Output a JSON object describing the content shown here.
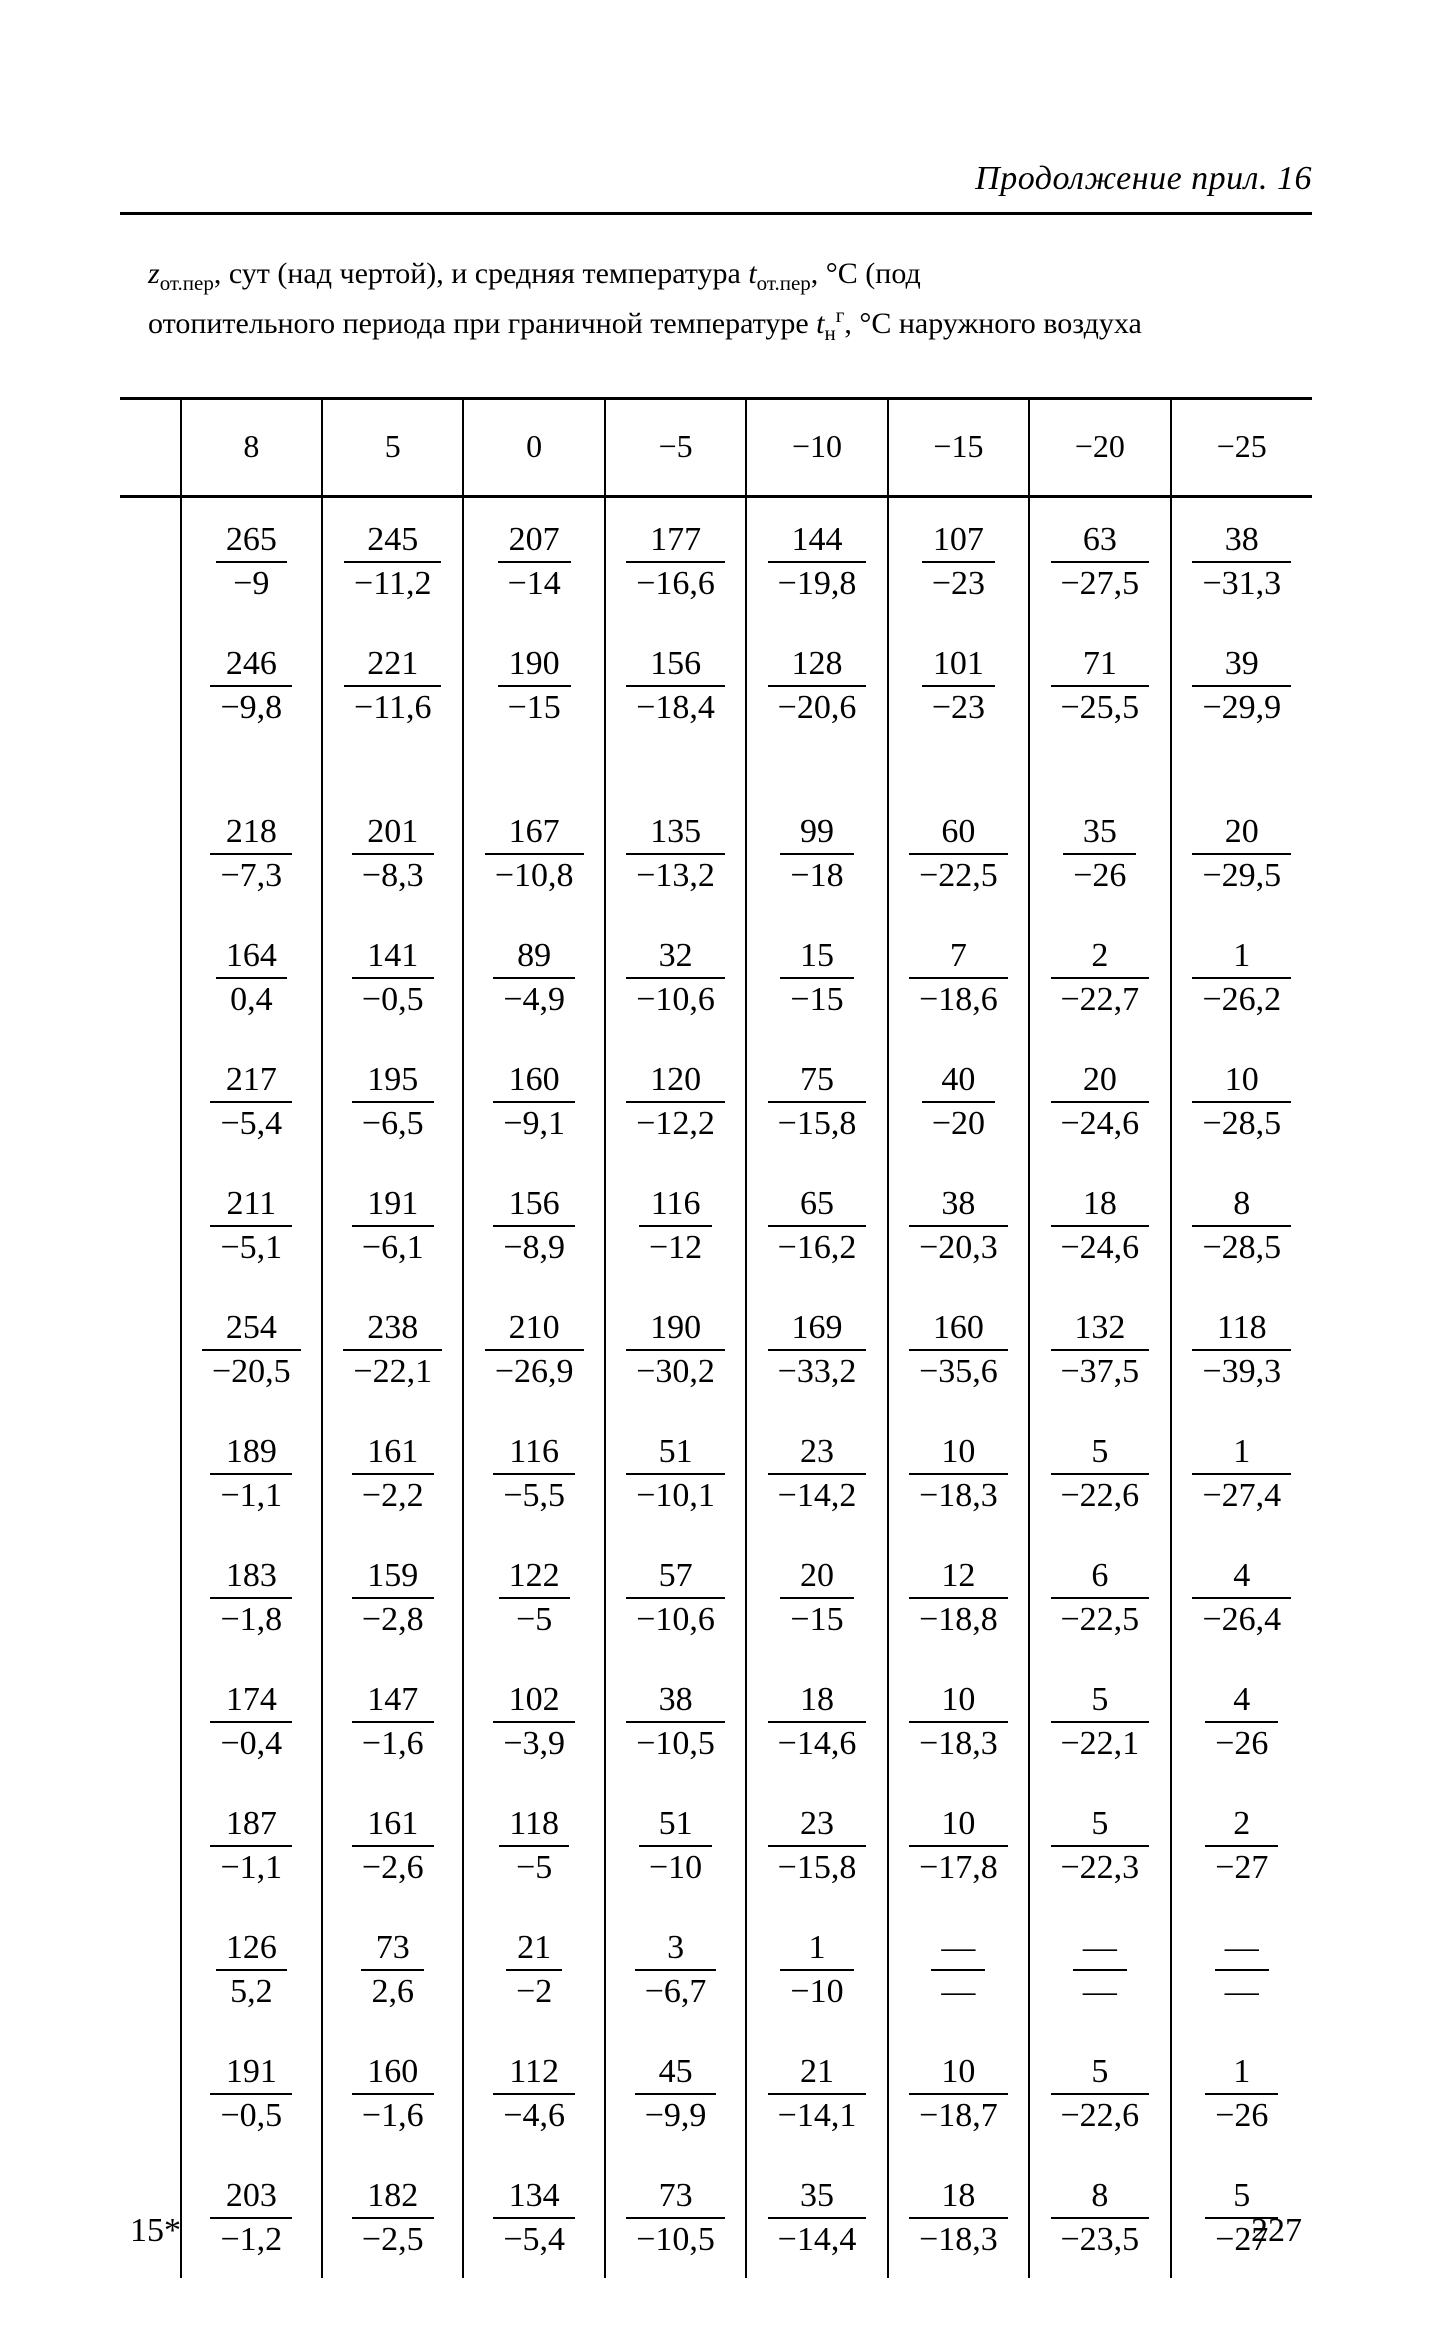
{
  "running_head": "Продолжение прил. 16",
  "caption_html": "<i>z</i><sub>от.пер</sub>, сут (над чертой), и средняя температура <i>t</i><sub>от.пер</sub>, °С (под<br>отопительного периода при граничной температуре <i>t</i><sub>н</sub><sup>г</sup>, °С наружного воздуха",
  "headers": [
    "8",
    "5",
    "0",
    "−5",
    "−10",
    "−15",
    "−20",
    "−25"
  ],
  "rows": [
    [
      [
        "265",
        "−9"
      ],
      [
        "245",
        "−11,2"
      ],
      [
        "207",
        "−14"
      ],
      [
        "177",
        "−16,6"
      ],
      [
        "144",
        "−19,8"
      ],
      [
        "107",
        "−23"
      ],
      [
        "63",
        "−27,5"
      ],
      [
        "38",
        "−31,3"
      ]
    ],
    [
      [
        "246",
        "−9,8"
      ],
      [
        "221",
        "−11,6"
      ],
      [
        "190",
        "−15"
      ],
      [
        "156",
        "−18,4"
      ],
      [
        "128",
        "−20,6"
      ],
      [
        "101",
        "−23"
      ],
      [
        "71",
        "−25,5"
      ],
      [
        "39",
        "−29,9"
      ]
    ],
    "gap",
    [
      [
        "218",
        "−7,3"
      ],
      [
        "201",
        "−8,3"
      ],
      [
        "167",
        "−10,8"
      ],
      [
        "135",
        "−13,2"
      ],
      [
        "99",
        "−18"
      ],
      [
        "60",
        "−22,5"
      ],
      [
        "35",
        "−26"
      ],
      [
        "20",
        "−29,5"
      ]
    ],
    [
      [
        "164",
        "0,4"
      ],
      [
        "141",
        "−0,5"
      ],
      [
        "89",
        "−4,9"
      ],
      [
        "32",
        "−10,6"
      ],
      [
        "15",
        "−15"
      ],
      [
        "7",
        "−18,6"
      ],
      [
        "2",
        "−22,7"
      ],
      [
        "1",
        "−26,2"
      ]
    ],
    [
      [
        "217",
        "−5,4"
      ],
      [
        "195",
        "−6,5"
      ],
      [
        "160",
        "−9,1"
      ],
      [
        "120",
        "−12,2"
      ],
      [
        "75",
        "−15,8"
      ],
      [
        "40",
        "−20"
      ],
      [
        "20",
        "−24,6"
      ],
      [
        "10",
        "−28,5"
      ]
    ],
    [
      [
        "211",
        "−5,1"
      ],
      [
        "191",
        "−6,1"
      ],
      [
        "156",
        "−8,9"
      ],
      [
        "116",
        "−12"
      ],
      [
        "65",
        "−16,2"
      ],
      [
        "38",
        "−20,3"
      ],
      [
        "18",
        "−24,6"
      ],
      [
        "8",
        "−28,5"
      ]
    ],
    [
      [
        "254",
        "−20,5"
      ],
      [
        "238",
        "−22,1"
      ],
      [
        "210",
        "−26,9"
      ],
      [
        "190",
        "−30,2"
      ],
      [
        "169",
        "−33,2"
      ],
      [
        "160",
        "−35,6"
      ],
      [
        "132",
        "−37,5"
      ],
      [
        "118",
        "−39,3"
      ]
    ],
    [
      [
        "189",
        "−1,1"
      ],
      [
        "161",
        "−2,2"
      ],
      [
        "116",
        "−5,5"
      ],
      [
        "51",
        "−10,1"
      ],
      [
        "23",
        "−14,2"
      ],
      [
        "10",
        "−18,3"
      ],
      [
        "5",
        "−22,6"
      ],
      [
        "1",
        "−27,4"
      ]
    ],
    [
      [
        "183",
        "−1,8"
      ],
      [
        "159",
        "−2,8"
      ],
      [
        "122",
        "−5"
      ],
      [
        "57",
        "−10,6"
      ],
      [
        "20",
        "−15"
      ],
      [
        "12",
        "−18,8"
      ],
      [
        "6",
        "−22,5"
      ],
      [
        "4",
        "−26,4"
      ]
    ],
    [
      [
        "174",
        "−0,4"
      ],
      [
        "147",
        "−1,6"
      ],
      [
        "102",
        "−3,9"
      ],
      [
        "38",
        "−10,5"
      ],
      [
        "18",
        "−14,6"
      ],
      [
        "10",
        "−18,3"
      ],
      [
        "5",
        "−22,1"
      ],
      [
        "4",
        "−26"
      ]
    ],
    [
      [
        "187",
        "−1,1"
      ],
      [
        "161",
        "−2,6"
      ],
      [
        "118",
        "−5"
      ],
      [
        "51",
        "−10"
      ],
      [
        "23",
        "−15,8"
      ],
      [
        "10",
        "−17,8"
      ],
      [
        "5",
        "−22,3"
      ],
      [
        "2",
        "−27"
      ]
    ],
    [
      [
        "126",
        "5,2"
      ],
      [
        "73",
        "2,6"
      ],
      [
        "21",
        "−2"
      ],
      [
        "3",
        "−6,7"
      ],
      [
        "1",
        "−10"
      ],
      [
        "—",
        "—"
      ],
      [
        "—",
        "—"
      ],
      [
        "—",
        "—"
      ]
    ],
    [
      [
        "191",
        "−0,5"
      ],
      [
        "160",
        "−1,6"
      ],
      [
        "112",
        "−4,6"
      ],
      [
        "45",
        "−9,9"
      ],
      [
        "21",
        "−14,1"
      ],
      [
        "10",
        "−18,7"
      ],
      [
        "5",
        "−22,6"
      ],
      [
        "1",
        "−26"
      ]
    ],
    [
      [
        "203",
        "−1,2"
      ],
      [
        "182",
        "−2,5"
      ],
      [
        "134",
        "−5,4"
      ],
      [
        "73",
        "−10,5"
      ],
      [
        "35",
        "−14,4"
      ],
      [
        "18",
        "−18,3"
      ],
      [
        "8",
        "−23,5"
      ],
      [
        "5",
        "−27"
      ]
    ]
  ],
  "foot_left": "15*",
  "foot_right": "227"
}
